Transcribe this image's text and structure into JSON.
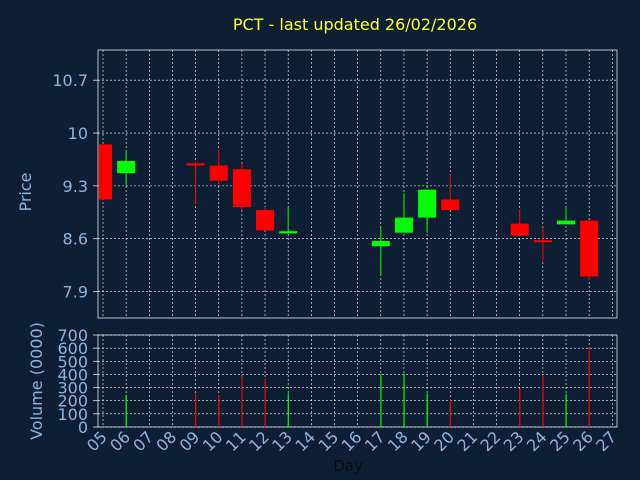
{
  "chart_data": [
    {
      "type": "candlestick",
      "title": "PCT - last updated 26/02/2026",
      "ylabel": "Price",
      "ylim": [
        7.55,
        11.1
      ],
      "yticks": [
        "10.7",
        "10",
        "9.3",
        "8.6",
        "7.9"
      ],
      "grid": true,
      "up_color": "#00ff00",
      "down_color": "#ff0000",
      "candles": [
        {
          "day": "05",
          "open": 9.85,
          "high": 9.85,
          "low": 9.12,
          "close": 9.12
        },
        {
          "day": "06",
          "open": 9.47,
          "high": 9.78,
          "low": 9.3,
          "close": 9.63
        },
        {
          "day": "09",
          "open": 9.6,
          "high": 9.62,
          "low": 9.05,
          "close": 9.57
        },
        {
          "day": "10",
          "open": 9.57,
          "high": 9.78,
          "low": 9.33,
          "close": 9.37
        },
        {
          "day": "11",
          "open": 9.52,
          "high": 9.6,
          "low": 8.98,
          "close": 9.02
        },
        {
          "day": "12",
          "open": 8.98,
          "high": 9.02,
          "low": 8.71,
          "close": 8.71
        },
        {
          "day": "13",
          "open": 8.67,
          "high": 9.02,
          "low": 8.67,
          "close": 8.7
        },
        {
          "day": "17",
          "open": 8.5,
          "high": 8.74,
          "low": 8.12,
          "close": 8.57
        },
        {
          "day": "18",
          "open": 8.68,
          "high": 9.2,
          "low": 8.68,
          "close": 8.88
        },
        {
          "day": "19",
          "open": 8.88,
          "high": 9.25,
          "low": 8.68,
          "close": 9.25
        },
        {
          "day": "20",
          "open": 9.12,
          "high": 9.45,
          "low": 8.98,
          "close": 8.98
        },
        {
          "day": "23",
          "open": 8.8,
          "high": 8.98,
          "low": 8.64,
          "close": 8.64
        },
        {
          "day": "24",
          "open": 8.58,
          "high": 8.75,
          "low": 8.3,
          "close": 8.57
        },
        {
          "day": "25",
          "open": 8.79,
          "high": 9.02,
          "low": 8.79,
          "close": 8.84
        },
        {
          "day": "26",
          "open": 8.84,
          "high": 8.84,
          "low": 8.05,
          "close": 8.1
        }
      ]
    },
    {
      "type": "bar",
      "xlabel": "Day",
      "ylabel": "Volume (0000)",
      "ylim": [
        0,
        700
      ],
      "yticks": [
        "0",
        "100",
        "200",
        "300",
        "400",
        "500",
        "600",
        "700"
      ],
      "categories": [
        "05",
        "06",
        "07",
        "08",
        "09",
        "10",
        "11",
        "12",
        "13",
        "14",
        "15",
        "16",
        "17",
        "18",
        "19",
        "20",
        "21",
        "22",
        "23",
        "24",
        "25",
        "26",
        "27"
      ],
      "grid": true,
      "bars": [
        {
          "day": "06",
          "value": 245,
          "color": "#00ff00"
        },
        {
          "day": "09",
          "value": 255,
          "color": "#ff0000"
        },
        {
          "day": "10",
          "value": 245,
          "color": "#ff0000"
        },
        {
          "day": "11",
          "value": 385,
          "color": "#ff0000"
        },
        {
          "day": "12",
          "value": 370,
          "color": "#ff0000"
        },
        {
          "day": "13",
          "value": 255,
          "color": "#00ff00"
        },
        {
          "day": "17",
          "value": 405,
          "color": "#00ff00"
        },
        {
          "day": "18",
          "value": 405,
          "color": "#00ff00"
        },
        {
          "day": "19",
          "value": 255,
          "color": "#00ff00"
        },
        {
          "day": "20",
          "value": 215,
          "color": "#ff0000"
        },
        {
          "day": "23",
          "value": 290,
          "color": "#ff0000"
        },
        {
          "day": "24",
          "value": 395,
          "color": "#ff0000"
        },
        {
          "day": "25",
          "value": 250,
          "color": "#00ff00"
        },
        {
          "day": "26",
          "value": 610,
          "color": "#ff0000"
        }
      ]
    }
  ]
}
